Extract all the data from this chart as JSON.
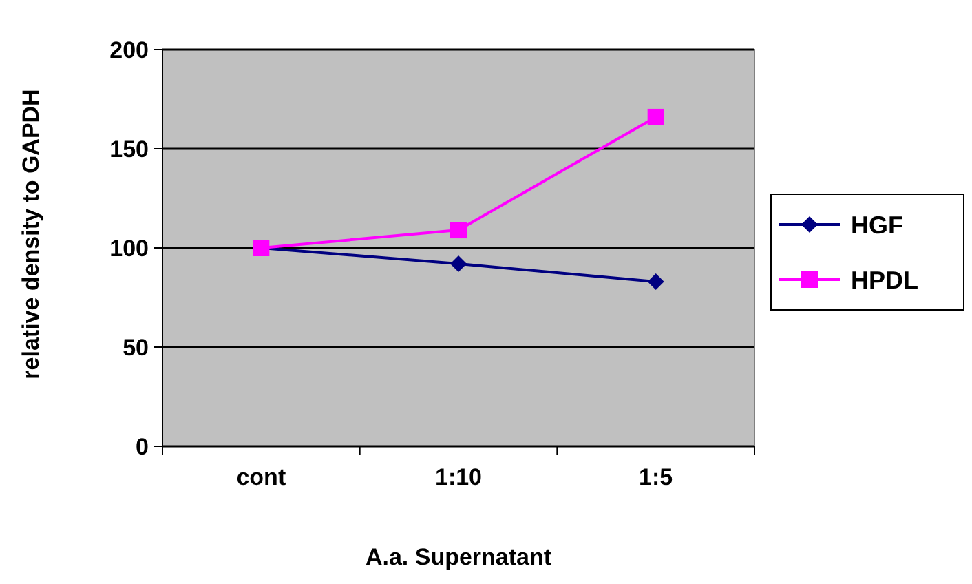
{
  "chart_data": {
    "type": "line",
    "xlabel": "A.a. Supernatant",
    "ylabel": "relative density to  GAPDH",
    "categories": [
      "cont",
      "1:10",
      "1:5"
    ],
    "series": [
      {
        "name": "HGF",
        "color": "#000080",
        "marker": "diamond",
        "values": [
          100,
          92,
          83
        ]
      },
      {
        "name": "HPDL",
        "color": "#ff00ff",
        "marker": "square",
        "values": [
          100,
          109,
          166
        ]
      }
    ],
    "ylim": [
      0,
      200
    ],
    "yticks": [
      0,
      50,
      100,
      150,
      200
    ],
    "grid": "y",
    "legend": "right"
  }
}
